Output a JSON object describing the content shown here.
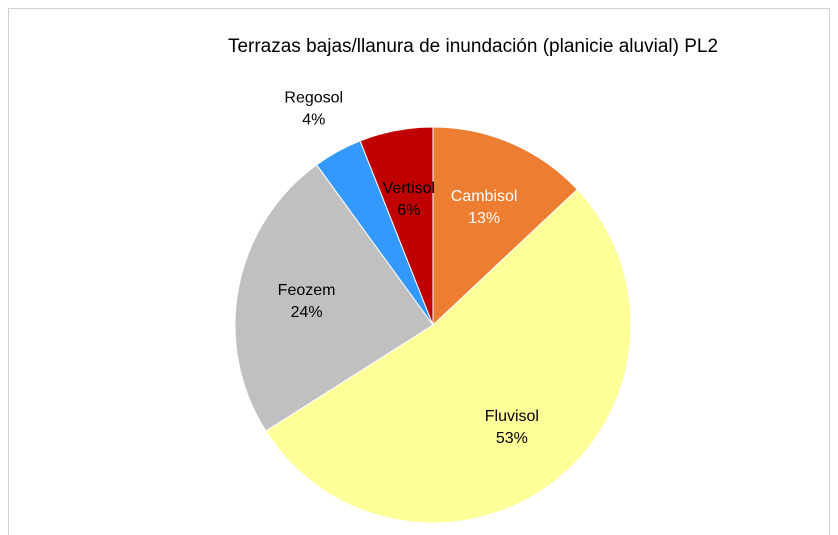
{
  "chart_data": {
    "type": "pie",
    "title": "Terrazas bajas/llanura de inundación (planicie aluvial) PL2",
    "categories": [
      "Cambisol",
      "Fluvisol",
      "Feozem",
      "Regosol",
      "Vertisol"
    ],
    "values": [
      13,
      53,
      24,
      4,
      6
    ],
    "value_labels": [
      "13%",
      "53%",
      "24%",
      "4%",
      "6%"
    ],
    "colors": [
      "#ED7D31",
      "#FFFF99",
      "#C0C0C0",
      "#3399FF",
      "#C00000"
    ]
  }
}
